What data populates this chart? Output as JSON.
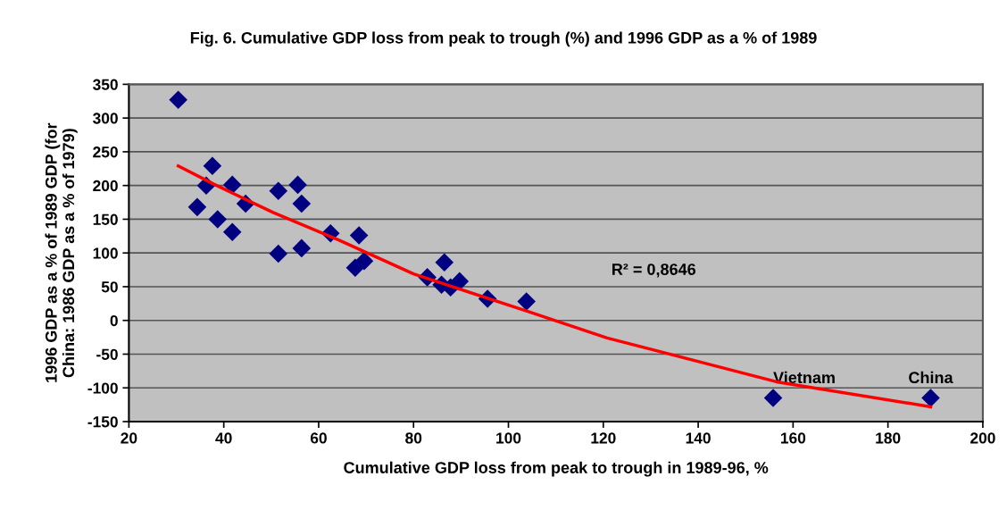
{
  "chart_data": {
    "type": "scatter",
    "title": "Fig. 6. Cumulative GDP loss from peak to trough (%) and 1996 GDP as a % of 1989",
    "xlabel": "Cumulative GDP loss from peak to trough in 1989-96, %",
    "ylabel": "1996 GDP as a % of 1989 GDP (for\nChina: 1986 GDP as a % of 1979)",
    "series": [
      {
        "color": "#000080",
        "marker": "diamond",
        "x": [
          30.4,
          37.6,
          36.3,
          41.8,
          34.4,
          44.6,
          38.7,
          41.8,
          51.5,
          55.6,
          56.4,
          51.5,
          56.4,
          62.5,
          68.5,
          67.7,
          69.6,
          82.9,
          86.5,
          85.9,
          87.8,
          89.7,
          95.6,
          103.8,
          155.8,
          189
        ],
        "values": [
          327,
          229,
          200,
          201,
          168,
          173,
          150,
          131,
          192,
          201,
          173,
          99,
          107,
          129,
          126,
          78,
          88,
          64,
          86,
          53,
          49,
          58,
          32,
          28,
          -115,
          -115
        ]
      },
      {
        "type": "line",
        "color": "#ff0000",
        "marker": "none",
        "x": [
          30.4,
          37.9,
          50.4,
          64.3,
          80,
          103.8,
          120.8,
          156.5,
          189
        ],
        "values": [
          229,
          202,
          160,
          119,
          69,
          14,
          -26,
          -91,
          -128
        ]
      }
    ],
    "annotations": [
      "R² = 0,8646",
      {
        "text": "Vietnam",
        "x": 155.8,
        "y": -115
      },
      {
        "text": "China",
        "x": 189,
        "y": -115
      }
    ],
    "xlim": [
      20,
      200
    ],
    "xticks": [
      20,
      40,
      60,
      80,
      100,
      120,
      140,
      160,
      180,
      200
    ],
    "ylim": [
      -150,
      350
    ],
    "yticks": [
      -150,
      -100,
      -50,
      0,
      50,
      100,
      150,
      200,
      250,
      300,
      350
    ],
    "grid": "y",
    "legend": false
  }
}
